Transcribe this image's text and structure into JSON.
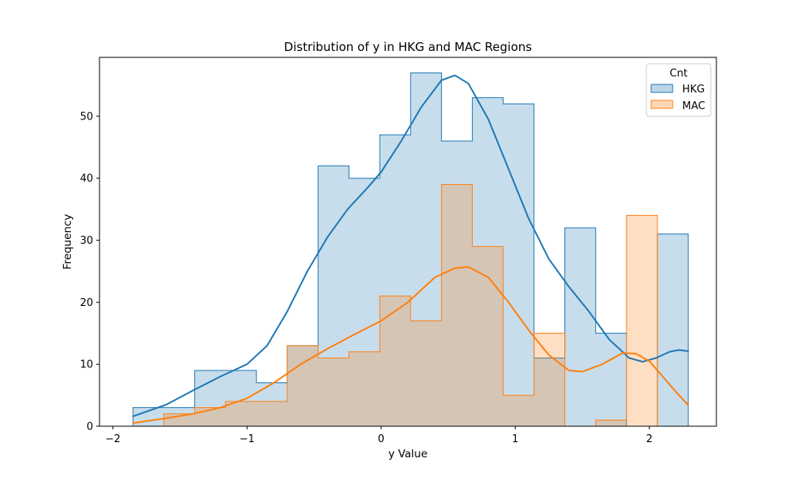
{
  "chart_data": {
    "type": "histogram",
    "title": "Distribution of y in HKG and MAC Regions",
    "xlabel": "y Value",
    "ylabel": "Frequency",
    "xlim": [
      -2.1,
      2.5
    ],
    "ylim": [
      0,
      59.5
    ],
    "xticks": [
      -2,
      -1,
      0,
      1,
      2
    ],
    "xtick_labels": [
      "−2",
      "−1",
      "0",
      "1",
      "2"
    ],
    "yticks": [
      0,
      10,
      20,
      30,
      40,
      50
    ],
    "ytick_labels": [
      "0",
      "10",
      "20",
      "30",
      "40",
      "50"
    ],
    "grid": false,
    "legend": {
      "title": "Cnt",
      "placement": "top-right"
    },
    "series": [
      {
        "name": "HKG",
        "color": "#1f77b4",
        "fill_alpha": 0.25,
        "bin_edges": [
          -1.85,
          -1.62,
          -1.39,
          -1.16,
          -0.93,
          -0.7,
          -0.47,
          -0.24,
          -0.01,
          0.22,
          0.45,
          0.68,
          0.91,
          1.14,
          1.37,
          1.6,
          1.83,
          2.06,
          2.29
        ],
        "counts": [
          3,
          3,
          9,
          9,
          7,
          13,
          42,
          40,
          47,
          57,
          46,
          53,
          52,
          11,
          32,
          15,
          0,
          31
        ],
        "kde": [
          [
            -1.85,
            1.6
          ],
          [
            -1.6,
            3.5
          ],
          [
            -1.4,
            5.8
          ],
          [
            -1.2,
            8.0
          ],
          [
            -1.0,
            10.0
          ],
          [
            -0.85,
            13.0
          ],
          [
            -0.7,
            18.5
          ],
          [
            -0.55,
            25.0
          ],
          [
            -0.4,
            30.5
          ],
          [
            -0.25,
            35.0
          ],
          [
            -0.1,
            38.5
          ],
          [
            0.0,
            41.0
          ],
          [
            0.15,
            46.0
          ],
          [
            0.3,
            51.5
          ],
          [
            0.45,
            55.8
          ],
          [
            0.55,
            56.6
          ],
          [
            0.65,
            55.3
          ],
          [
            0.8,
            49.5
          ],
          [
            0.95,
            41.5
          ],
          [
            1.1,
            33.5
          ],
          [
            1.25,
            27.0
          ],
          [
            1.4,
            22.5
          ],
          [
            1.55,
            18.5
          ],
          [
            1.7,
            14.0
          ],
          [
            1.85,
            11.0
          ],
          [
            1.95,
            10.4
          ],
          [
            2.05,
            11.0
          ],
          [
            2.15,
            12.0
          ],
          [
            2.22,
            12.3
          ],
          [
            2.29,
            12.1
          ]
        ]
      },
      {
        "name": "MAC",
        "color": "#ff7f0e",
        "fill_alpha": 0.25,
        "bin_edges": [
          -1.85,
          -1.62,
          -1.39,
          -1.16,
          -0.93,
          -0.7,
          -0.47,
          -0.24,
          -0.01,
          0.22,
          0.45,
          0.68,
          0.91,
          1.14,
          1.37,
          1.6,
          1.83,
          2.06,
          2.29
        ],
        "counts": [
          0,
          2,
          3,
          4,
          4,
          13,
          11,
          12,
          21,
          17,
          39,
          29,
          5,
          15,
          0,
          1,
          34,
          0
        ],
        "kde": [
          [
            -1.85,
            0.5
          ],
          [
            -1.6,
            1.3
          ],
          [
            -1.4,
            2.0
          ],
          [
            -1.2,
            3.0
          ],
          [
            -1.0,
            4.5
          ],
          [
            -0.8,
            7.0
          ],
          [
            -0.6,
            10.0
          ],
          [
            -0.4,
            12.5
          ],
          [
            -0.2,
            14.8
          ],
          [
            0.0,
            17.0
          ],
          [
            0.2,
            20.0
          ],
          [
            0.4,
            24.0
          ],
          [
            0.55,
            25.5
          ],
          [
            0.65,
            25.7
          ],
          [
            0.8,
            24.0
          ],
          [
            0.95,
            20.0
          ],
          [
            1.1,
            15.5
          ],
          [
            1.25,
            11.5
          ],
          [
            1.4,
            9.0
          ],
          [
            1.5,
            8.8
          ],
          [
            1.65,
            10.0
          ],
          [
            1.8,
            11.8
          ],
          [
            1.9,
            11.7
          ],
          [
            2.0,
            10.5
          ],
          [
            2.1,
            8.0
          ],
          [
            2.2,
            5.5
          ],
          [
            2.29,
            3.4
          ]
        ]
      }
    ]
  }
}
